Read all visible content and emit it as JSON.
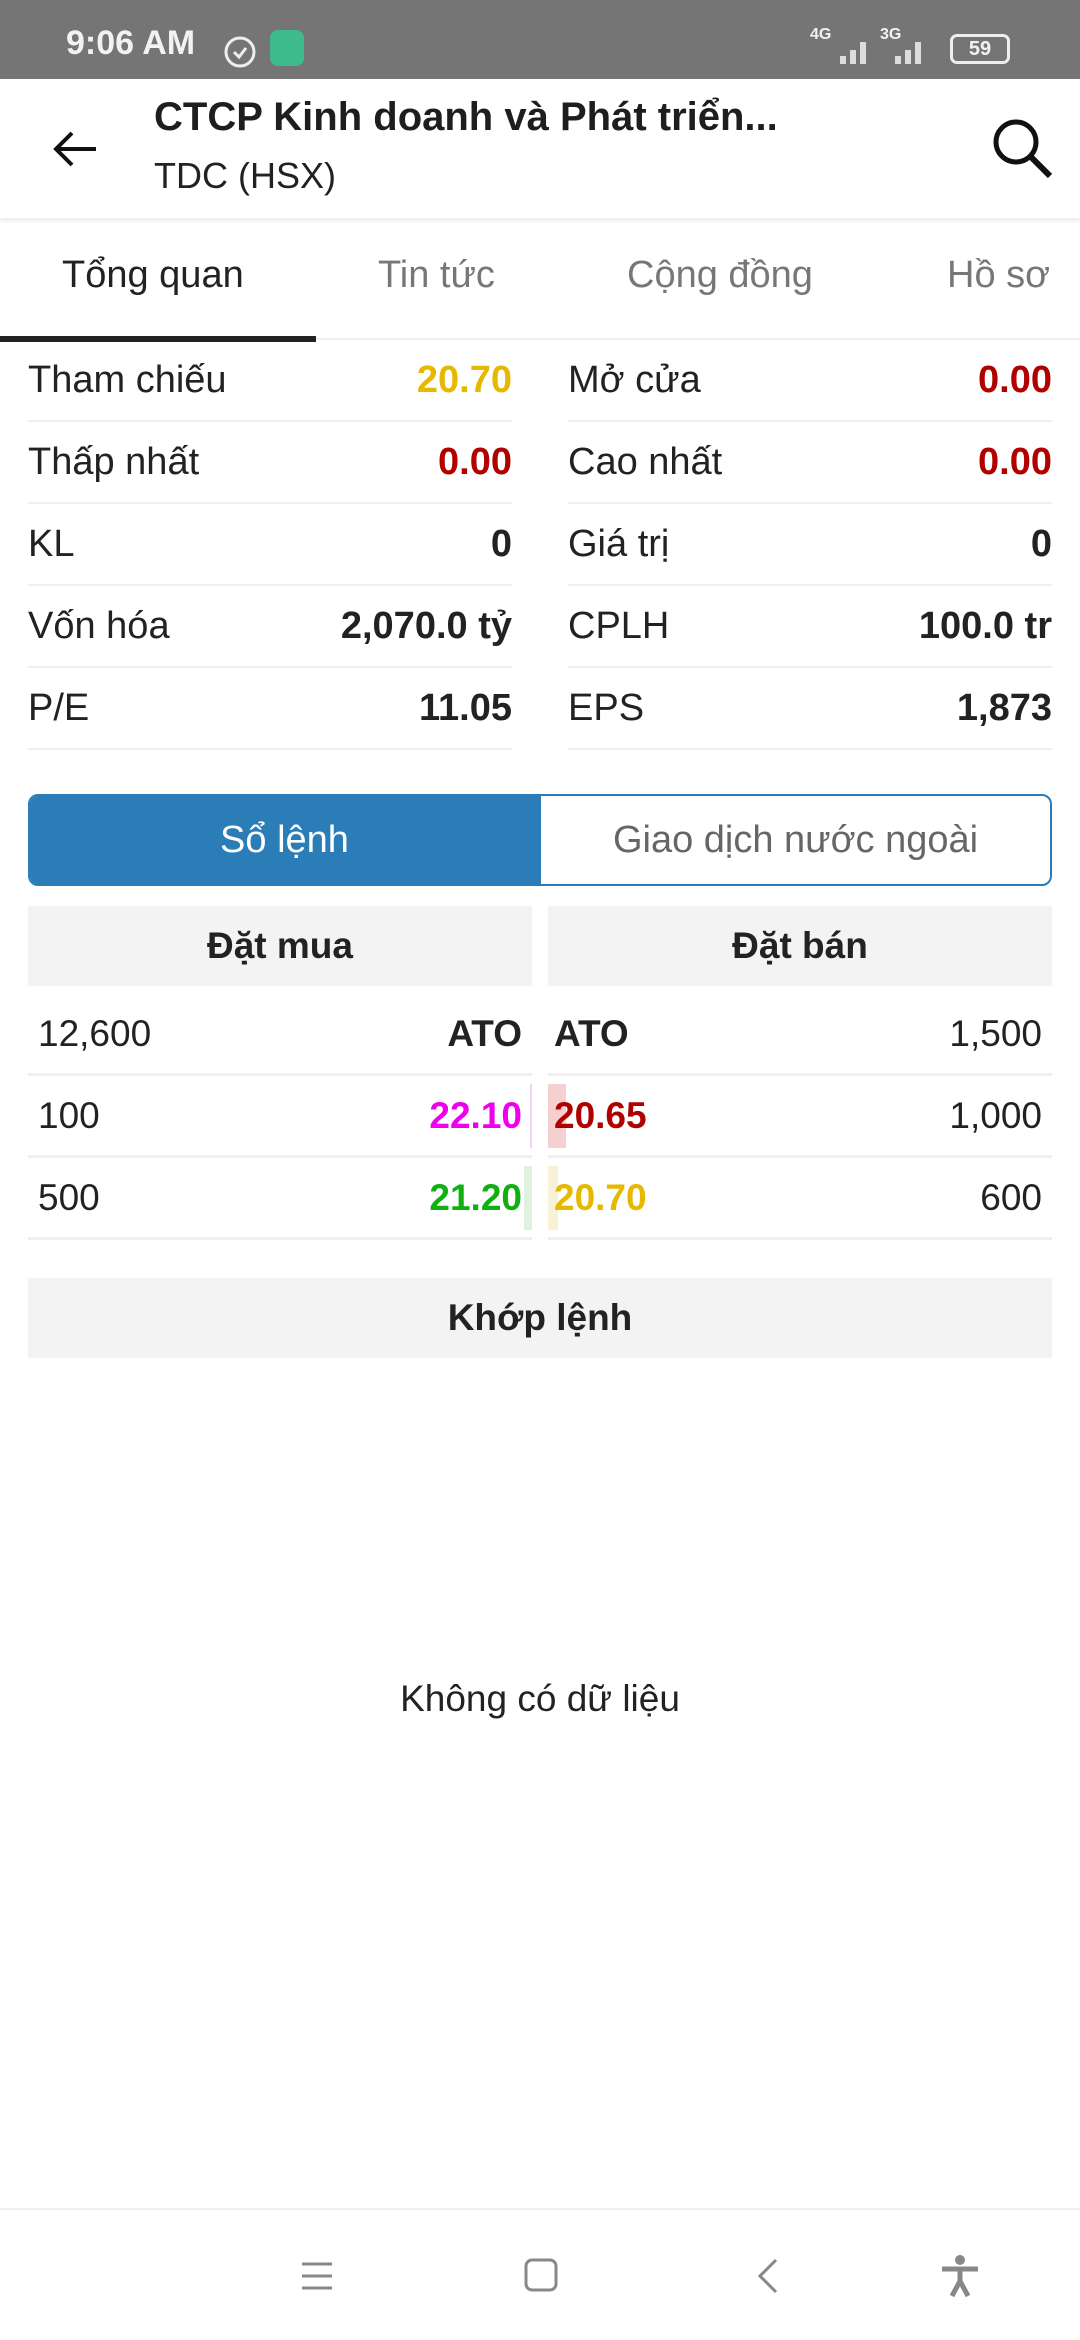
{
  "status_bar": {
    "time": "9:06 AM",
    "network1": "4G",
    "network2": "3G",
    "battery": "59",
    "icons": [
      "alarm-icon",
      "app-notification-icon",
      "signal-icon",
      "battery-icon"
    ]
  },
  "header": {
    "title": "CTCP Kinh doanh và Phát triển...",
    "subtitle": "TDC (HSX)",
    "icons": [
      "back-arrow-icon",
      "search-icon"
    ]
  },
  "tabs": [
    {
      "label": "Tổng quan",
      "active": true
    },
    {
      "label": "Tin tức"
    },
    {
      "label": "Cộng đồng"
    },
    {
      "label": "Hồ sơ"
    }
  ],
  "stats": [
    {
      "label": "Tham chiếu",
      "value": "20.70",
      "color": "#e6b800"
    },
    {
      "label": "Mở cửa",
      "value": "0.00",
      "color": "#b00000"
    },
    {
      "label": "Thấp nhất",
      "value": "0.00",
      "color": "#b00000"
    },
    {
      "label": "Cao nhất",
      "value": "0.00",
      "color": "#b00000"
    },
    {
      "label": "KL",
      "value": "0",
      "color": "#222222"
    },
    {
      "label": "Giá trị",
      "value": "0",
      "color": "#222222"
    },
    {
      "label": "Vốn hóa",
      "value": "2,070.0 tỷ",
      "color": "#222222"
    },
    {
      "label": "CPLH",
      "value": "100.0 tr",
      "color": "#222222"
    },
    {
      "label": "P/E",
      "value": "11.05",
      "color": "#222222"
    },
    {
      "label": "EPS",
      "value": "1,873",
      "color": "#222222"
    }
  ],
  "segment": {
    "options": [
      "Sổ lệnh",
      "Giao dịch nước ngoài"
    ],
    "selected": 0,
    "accent": "#2a7db7"
  },
  "order_book": {
    "buy_header": "Đặt mua",
    "sell_header": "Đặt bán",
    "rows": [
      {
        "buy_vol": "12,600",
        "buy_price": "ATO",
        "buy_color": "#222222",
        "sell_price": "ATO",
        "sell_color": "#222222",
        "sell_vol": "1,500"
      },
      {
        "buy_vol": "100",
        "buy_price": "22.10",
        "buy_color": "#ee00ee",
        "sell_price": "20.65",
        "sell_color": "#b00000",
        "sell_vol": "1,000"
      },
      {
        "buy_vol": "500",
        "buy_price": "21.20",
        "buy_color": "#10b010",
        "sell_price": "20.70",
        "sell_color": "#e6b800",
        "sell_vol": "600"
      }
    ]
  },
  "matched": {
    "header": "Khớp lệnh",
    "empty": "Không có dữ liệu"
  },
  "nav_bar": {
    "icons": [
      "menu-icon",
      "home-icon",
      "back-icon",
      "accessibility-icon"
    ]
  }
}
